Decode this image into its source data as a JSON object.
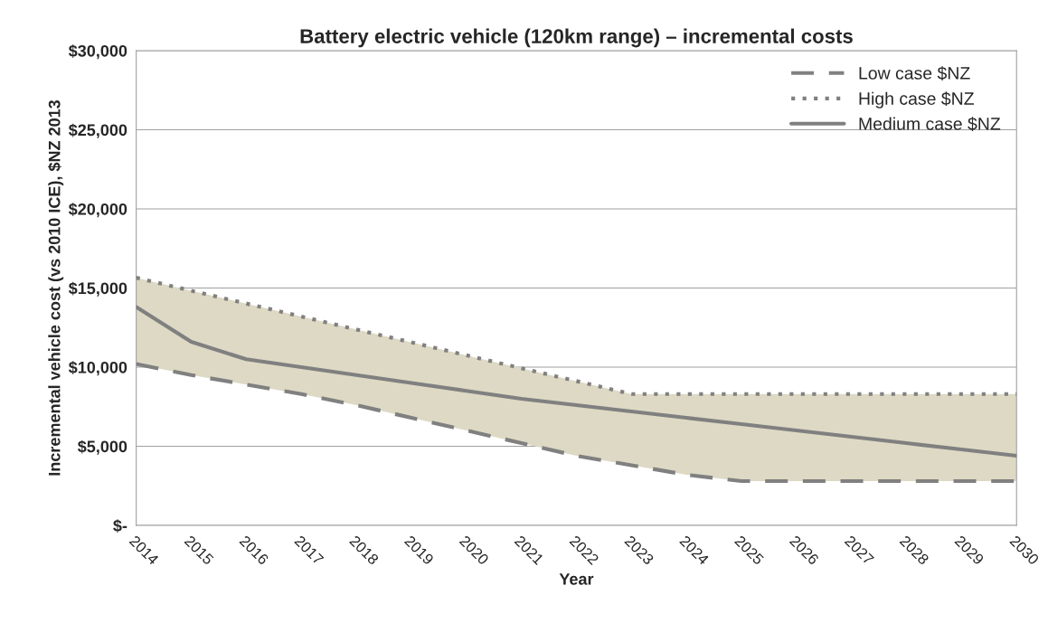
{
  "chart_data": {
    "type": "line",
    "title": "Battery electric vehicle (120km range) – incremental costs",
    "xlabel": "Year",
    "ylabel": "Incremental vehicle cost (vs 2010 ICE), $NZ 2013",
    "categories": [
      "2014",
      "2015",
      "2016",
      "2017",
      "2018",
      "2019",
      "2020",
      "2021",
      "2022",
      "2023",
      "2024",
      "2025",
      "2026",
      "2027",
      "2028",
      "2029",
      "2030"
    ],
    "series": [
      {
        "name": "Low case $NZ",
        "color": "#808080",
        "line_style": "dashed",
        "values": [
          10200,
          9500,
          8900,
          8300,
          7600,
          6800,
          6000,
          5200,
          4400,
          3800,
          3200,
          2800,
          2800,
          2800,
          2800,
          2800,
          2800
        ]
      },
      {
        "name": "High case $NZ",
        "color": "#808080",
        "line_style": "dotted",
        "values": [
          15650,
          14830,
          14020,
          13200,
          12380,
          11570,
          10750,
          9930,
          9120,
          8300,
          8300,
          8300,
          8300,
          8300,
          8300,
          8300,
          8300
        ]
      },
      {
        "name": "Medium case $NZ",
        "color": "#808080",
        "line_style": "solid",
        "values": [
          13800,
          11600,
          10500,
          10000,
          9500,
          9000,
          8500,
          8000,
          7600,
          7200,
          6800,
          6400,
          6000,
          5600,
          5200,
          4800,
          4400
        ],
        "lower": [
          10200,
          9500,
          8900,
          8300,
          7600,
          6800,
          6000,
          5200,
          4400,
          3800,
          3200,
          2800,
          2800,
          2800,
          2800,
          2800,
          2800
        ],
        "upper": [
          15650,
          14830,
          14020,
          13200,
          12380,
          11570,
          10750,
          9930,
          9120,
          8300,
          8300,
          8300,
          8300,
          8300,
          8300,
          8300,
          8300
        ]
      }
    ],
    "ylim": [
      0,
      30000
    ],
    "yticks": [
      {
        "value": 0,
        "label": "$-"
      },
      {
        "value": 5000,
        "label": "$5,000"
      },
      {
        "value": 10000,
        "label": "$10,000"
      },
      {
        "value": 15000,
        "label": "$15,000"
      },
      {
        "value": 20000,
        "label": "$20,000"
      },
      {
        "value": 25000,
        "label": "$25,000"
      },
      {
        "value": 30000,
        "label": "$30,000"
      }
    ],
    "grid": "y",
    "legend": "top right",
    "marker": "none"
  }
}
